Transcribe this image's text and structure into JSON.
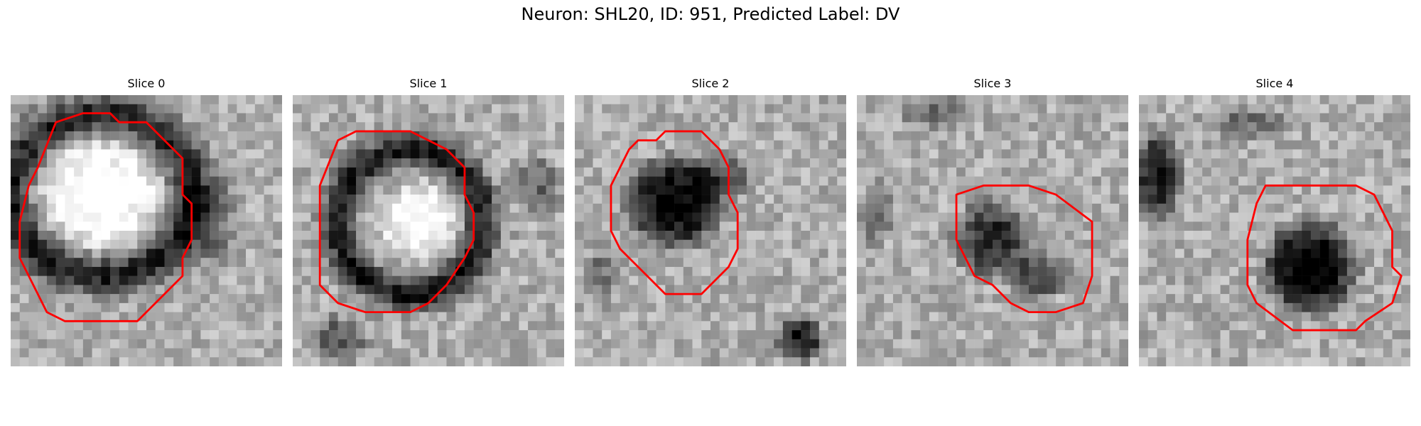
{
  "figure": {
    "title": "Neuron: SHL20, ID: 951, Predicted Label: DV"
  },
  "colors": {
    "contour": "#ff0000",
    "background": "#ffffff"
  },
  "panels": [
    {
      "title": "Slice 0",
      "seed": 11
    },
    {
      "title": "Slice 1",
      "seed": 23
    },
    {
      "title": "Slice 2",
      "seed": 37
    },
    {
      "title": "Slice 3",
      "seed": 51
    },
    {
      "title": "Slice 4",
      "seed": 67
    }
  ]
}
